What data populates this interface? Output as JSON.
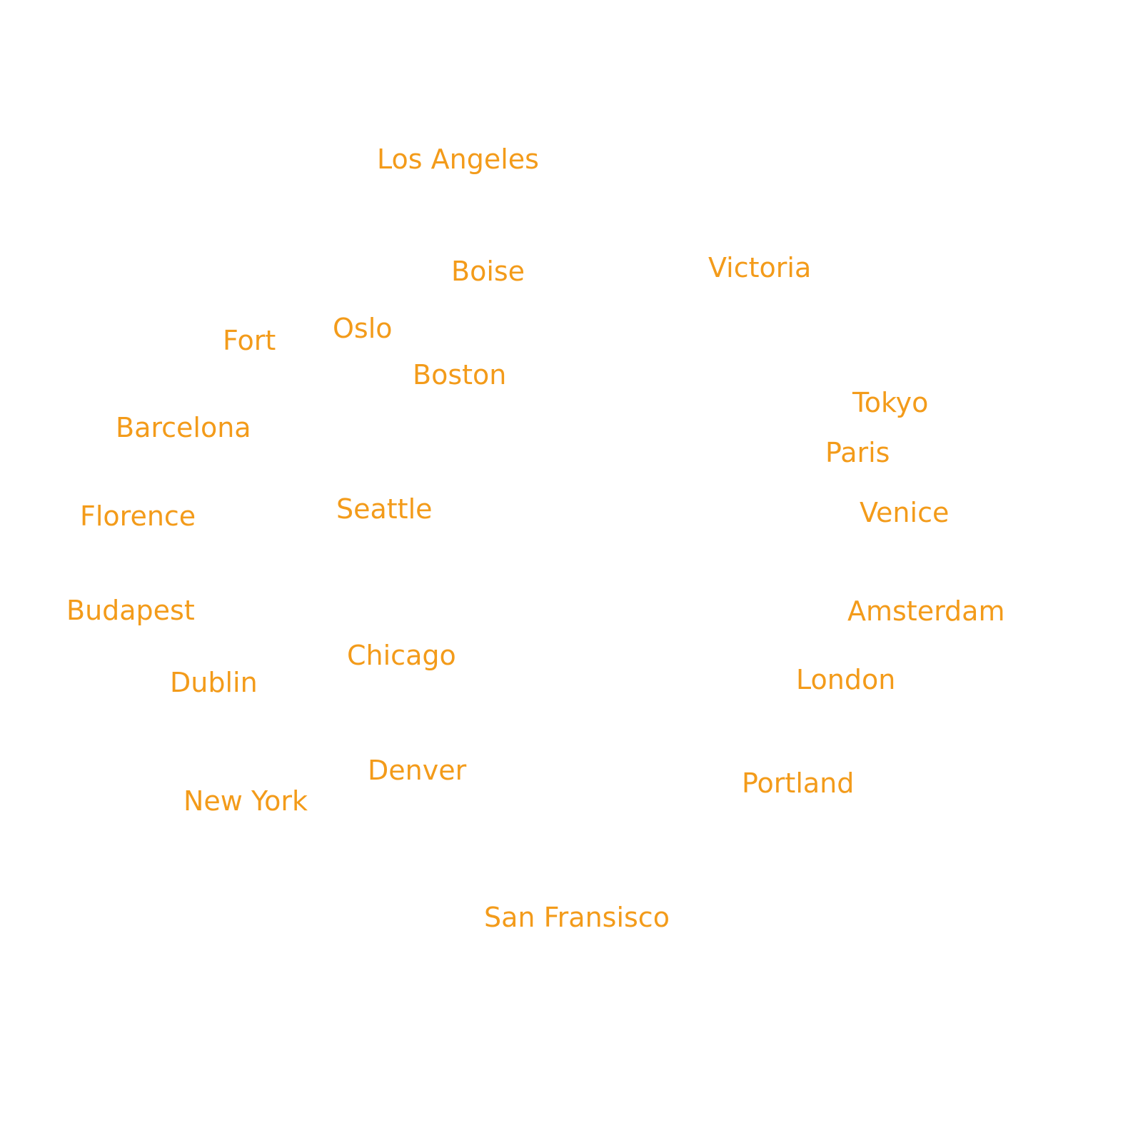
{
  "theme": {
    "background": "#ffffff",
    "label_color": "#f39b1a"
  },
  "cities": {
    "los_angeles": "Los Angeles",
    "boise": "Boise",
    "victoria": "Victoria",
    "oslo": "Oslo",
    "fort": "Fort",
    "boston": "Boston",
    "tokyo": "Tokyo",
    "barcelona": "Barcelona",
    "paris": "Paris",
    "seattle": "Seattle",
    "florence": "Florence",
    "venice": "Venice",
    "budapest": "Budapest",
    "amsterdam": "Amsterdam",
    "chicago": "Chicago",
    "dublin": "Dublin",
    "london": "London",
    "denver": "Denver",
    "portland": "Portland",
    "new_york": "New York",
    "san_fransisco": "San Fransisco"
  }
}
